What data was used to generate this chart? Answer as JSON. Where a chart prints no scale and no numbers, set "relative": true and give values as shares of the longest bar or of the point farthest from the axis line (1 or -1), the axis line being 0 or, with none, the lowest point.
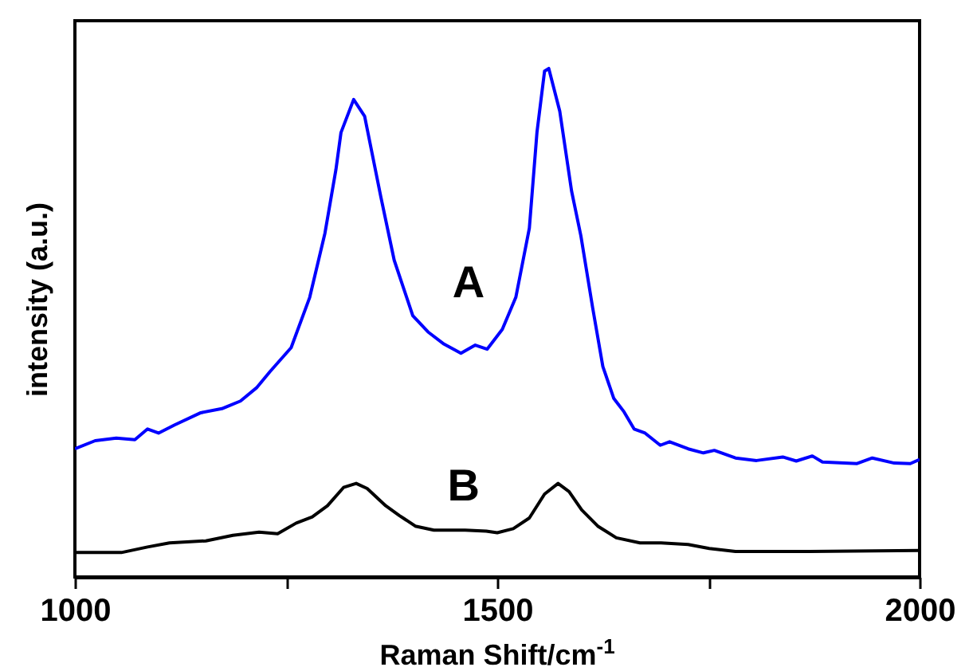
{
  "chart_data": {
    "type": "line",
    "relative": true,
    "xlabel": "Raman Shift/cm$^{-1}$",
    "ylabel": "intensity (a.u.)",
    "xlim": [
      1000,
      2000
    ],
    "xticks": [
      1000,
      {
        "value": 1250,
        "label": null
      },
      1500,
      {
        "value": 1750,
        "label": null
      },
      2000
    ],
    "series": [
      {
        "name": "A",
        "color": "#0000ff",
        "x": [
          1000,
          1024,
          1049,
          1071,
          1086,
          1099,
          1118,
          1149,
          1174,
          1196,
          1215,
          1231,
          1256,
          1278,
          1296,
          1309,
          1315,
          1330,
          1343,
          1362,
          1378,
          1400,
          1418,
          1437,
          1457,
          1474,
          1488,
          1506,
          1522,
          1538,
          1547,
          1556,
          1561,
          1574,
          1588,
          1599,
          1613,
          1625,
          1638,
          1650,
          1662,
          1675,
          1693,
          1704,
          1726,
          1744,
          1757,
          1782,
          1807,
          1838,
          1854,
          1873,
          1885,
          1926,
          1944,
          1970,
          1989,
          2000
        ],
        "values": [
          0.252,
          0.268,
          0.273,
          0.27,
          0.291,
          0.283,
          0.299,
          0.323,
          0.331,
          0.346,
          0.372,
          0.404,
          0.451,
          0.55,
          0.676,
          0.801,
          0.874,
          0.939,
          0.906,
          0.749,
          0.623,
          0.514,
          0.482,
          0.458,
          0.44,
          0.456,
          0.448,
          0.487,
          0.55,
          0.686,
          0.874,
          0.995,
          1,
          0.916,
          0.759,
          0.671,
          0.529,
          0.414,
          0.351,
          0.325,
          0.291,
          0.283,
          0.259,
          0.266,
          0.252,
          0.244,
          0.249,
          0.234,
          0.229,
          0.236,
          0.228,
          0.238,
          0.226,
          0.223,
          0.234,
          0.224,
          0.223,
          0.231
        ]
      },
      {
        "name": "B",
        "color": "#000000",
        "x": [
          1000,
          1055,
          1086,
          1112,
          1155,
          1187,
          1218,
          1240,
          1262,
          1281,
          1299,
          1318,
          1333,
          1346,
          1368,
          1384,
          1403,
          1425,
          1462,
          1487,
          1500,
          1519,
          1538,
          1556,
          1572,
          1585,
          1600,
          1619,
          1641,
          1669,
          1694,
          1726,
          1751,
          1782,
          1870,
          2000
        ],
        "values": [
          0.048,
          0.048,
          0.059,
          0.067,
          0.071,
          0.082,
          0.088,
          0.085,
          0.106,
          0.118,
          0.14,
          0.176,
          0.184,
          0.174,
          0.14,
          0.121,
          0.1,
          0.092,
          0.092,
          0.09,
          0.087,
          0.095,
          0.116,
          0.163,
          0.184,
          0.168,
          0.132,
          0.1,
          0.077,
          0.067,
          0.067,
          0.064,
          0.056,
          0.05,
          0.05,
          0.052
        ]
      }
    ]
  }
}
